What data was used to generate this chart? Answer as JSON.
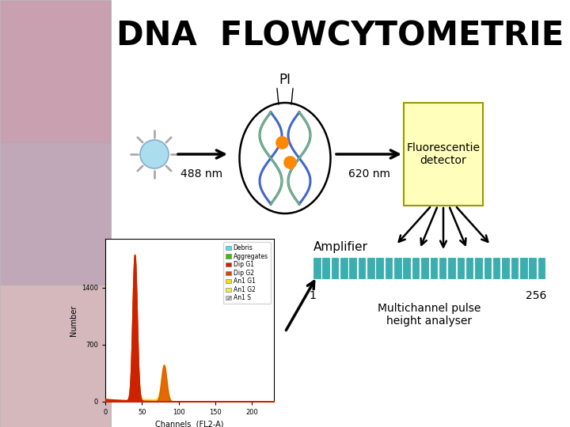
{
  "title": "DNA  FLOWCYTOMETRIE",
  "title_fontsize": 30,
  "title_fontweight": "bold",
  "bg_color": "#ffffff",
  "pi_label": "PI",
  "nm_488": "488 nm",
  "nm_620": "620 nm",
  "detector_label": "Fluorescentie\ndetector",
  "detector_bg": "#ffffbb",
  "amplifier_label": "Amplifier",
  "multichannel_label": "Multichannel pulse\nheight analyser",
  "multichannel_color": "#3aafaf",
  "channel_start": "1",
  "channel_end": "256",
  "sun_body_color": "#aaddee",
  "sun_ray_color": "#aaaaaa",
  "arrow_color": "#000000",
  "left_panel_colors": [
    "#c8a0b0",
    "#c0a8b8",
    "#d4b8bc"
  ],
  "hist_g1_color": "#cc2200",
  "hist_g2_color": "#dd5500",
  "hist_yellow_color": "#ffdd00",
  "hist_debris_color": "#ffaa00"
}
